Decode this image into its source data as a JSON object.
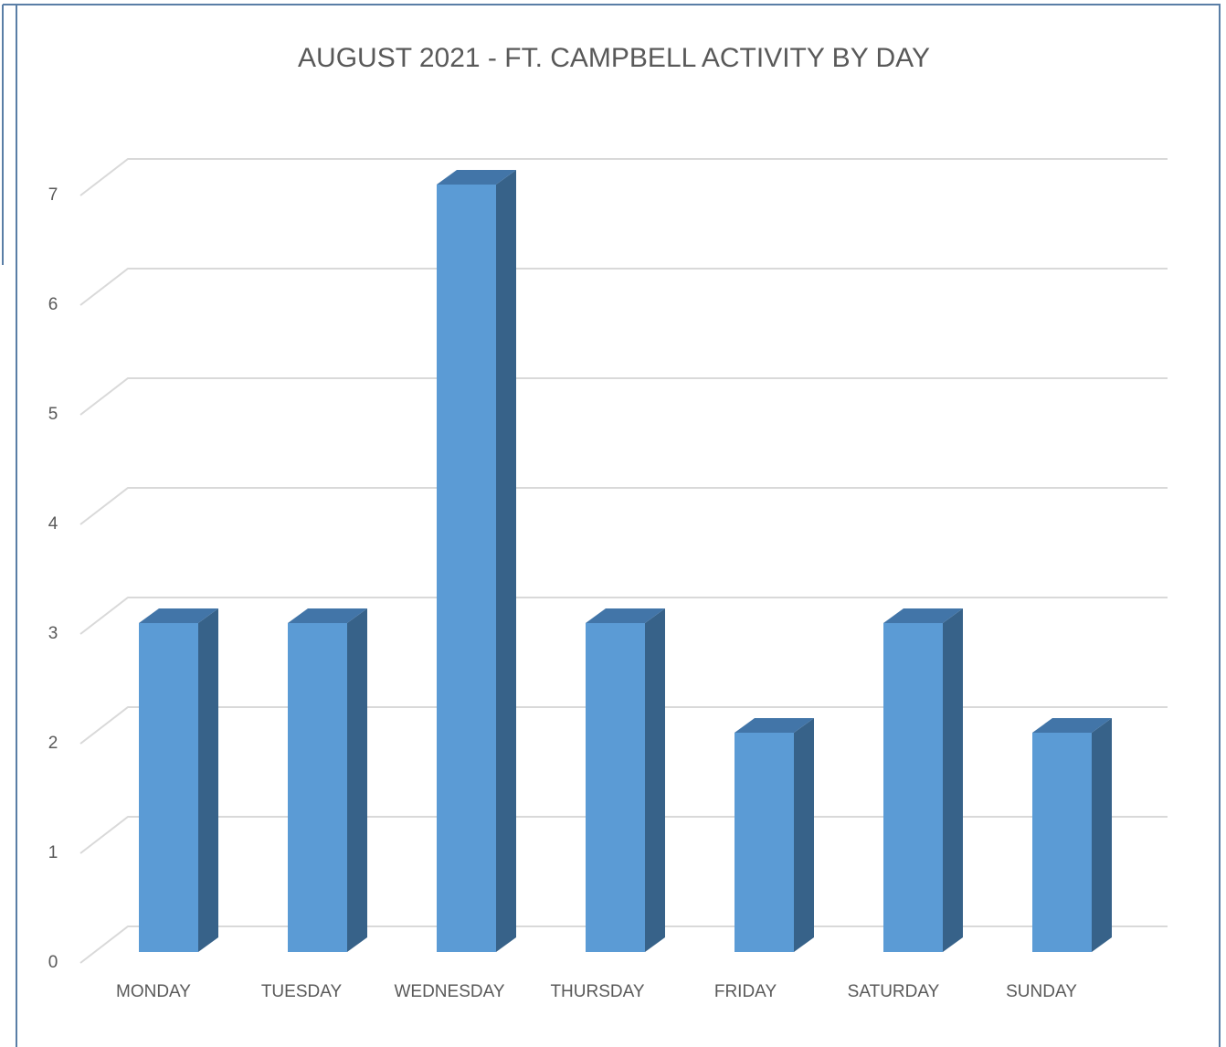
{
  "chart_data": {
    "type": "bar3d",
    "title": "AUGUST 2021 - FT. CAMPBELL ACTIVITY BY DAY",
    "categories": [
      "MONDAY",
      "TUESDAY",
      "WEDNESDAY",
      "THURSDAY",
      "FRIDAY",
      "SATURDAY",
      "SUNDAY"
    ],
    "values": [
      3,
      3,
      7,
      3,
      2,
      3,
      2
    ],
    "color": "#5b9bd5",
    "ylim": [
      0,
      7
    ],
    "yticks": [
      0,
      1,
      2,
      3,
      4,
      5,
      6,
      7
    ],
    "grid": true
  }
}
